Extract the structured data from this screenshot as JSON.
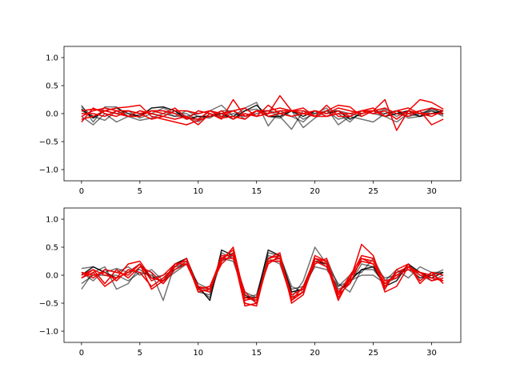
{
  "colors": {
    "dark": "#000000",
    "red": "#ee0000",
    "axis": "#000000",
    "background": "#ffffff"
  },
  "chart_data": [
    {
      "type": "line",
      "xlim": [
        -1.5,
        32.5
      ],
      "ylim": [
        -1.2,
        1.2
      ],
      "xticks": [
        0,
        5,
        10,
        15,
        20,
        25,
        30
      ],
      "yticks": [
        -1.0,
        -0.5,
        0.0,
        0.5,
        1.0
      ],
      "xtick_labels": [
        "0",
        "5",
        "10",
        "15",
        "20",
        "25",
        "30"
      ],
      "ytick_labels": [
        "−1.0",
        "−0.5",
        "0.0",
        "0.5",
        "1.0"
      ],
      "grid": false,
      "x": [
        0,
        1,
        2,
        3,
        4,
        5,
        6,
        7,
        8,
        9,
        10,
        11,
        12,
        13,
        14,
        15,
        16,
        17,
        18,
        19,
        20,
        21,
        22,
        23,
        24,
        25,
        26,
        27,
        28,
        29,
        30,
        31
      ],
      "series": [
        {
          "color": "dark",
          "opacity": 0.55,
          "values": [
            0.15,
            -0.15,
            0.12,
            0.12,
            -0.05,
            0.05,
            0.0,
            -0.05,
            0.05,
            -0.05,
            0.0,
            0.05,
            0.15,
            -0.05,
            0.1,
            0.2,
            -0.22,
            0.05,
            -0.05,
            -0.15,
            0.05,
            -0.05,
            0.0,
            -0.15,
            0.05,
            0.0,
            0.08,
            -0.05,
            0.05,
            0.0,
            0.05,
            -0.02
          ]
        },
        {
          "color": "dark",
          "opacity": 0.55,
          "values": [
            0.05,
            -0.05,
            -0.12,
            0.05,
            -0.05,
            -0.02,
            0.05,
            0.05,
            -0.05,
            0.05,
            -0.05,
            -0.08,
            0.05,
            0.05,
            -0.1,
            0.05,
            0.05,
            -0.05,
            -0.28,
            0.05,
            0.0,
            0.1,
            -0.2,
            -0.05,
            0.05,
            0.0,
            -0.05,
            -0.15,
            0.0,
            -0.05,
            0.05,
            -0.05
          ]
        },
        {
          "color": "dark",
          "opacity": 0.55,
          "values": [
            -0.05,
            -0.2,
            0.0,
            -0.15,
            -0.05,
            -0.12,
            -0.08,
            0.0,
            -0.05,
            -0.05,
            -0.15,
            0.0,
            -0.05,
            -0.05,
            0.05,
            0.08,
            -0.05,
            -0.08,
            0.05,
            -0.25,
            -0.08,
            0.05,
            -0.1,
            -0.05,
            -0.1,
            -0.15,
            0.0,
            0.05,
            -0.08,
            -0.05,
            0.1,
            0.0
          ]
        },
        {
          "color": "dark",
          "opacity": 0.9,
          "values": [
            0.08,
            -0.08,
            0.05,
            0.1,
            0.0,
            -0.05,
            0.1,
            0.12,
            0.05,
            -0.1,
            -0.05,
            -0.05,
            0.0,
            -0.1,
            0.05,
            0.15,
            -0.05,
            -0.05,
            0.05,
            -0.05,
            0.05,
            0.0,
            0.05,
            -0.1,
            0.0,
            0.05,
            -0.05,
            0.0,
            0.05,
            -0.05,
            0.0,
            0.05
          ]
        },
        {
          "color": "dark",
          "opacity": 0.55,
          "values": [
            0.12,
            -0.05,
            0.05,
            0.0,
            0.05,
            -0.08,
            0.0,
            0.1,
            0.0,
            0.0,
            -0.12,
            0.05,
            -0.05,
            0.0,
            -0.05,
            0.0,
            0.05,
            0.0,
            0.05,
            -0.1,
            0.0,
            0.05,
            0.05,
            0.0,
            -0.05,
            0.05,
            0.0,
            0.05,
            -0.05,
            0.0,
            0.08,
            0.0
          ]
        },
        {
          "color": "red",
          "opacity": 1.0,
          "values": [
            -0.15,
            0.1,
            0.0,
            -0.05,
            0.05,
            0.0,
            0.05,
            0.05,
            0.0,
            -0.1,
            0.05,
            0.0,
            -0.1,
            0.25,
            -0.05,
            0.05,
            0.0,
            0.32,
            0.05,
            0.05,
            -0.05,
            0.15,
            -0.05,
            -0.05,
            0.05,
            0.0,
            0.05,
            -0.1,
            0.05,
            0.0,
            -0.05,
            0.05
          ]
        },
        {
          "color": "red",
          "opacity": 1.0,
          "values": [
            -0.1,
            -0.05,
            0.05,
            0.1,
            0.12,
            0.15,
            -0.05,
            -0.1,
            -0.15,
            -0.2,
            -0.12,
            -0.05,
            0.05,
            -0.1,
            0.0,
            -0.05,
            0.0,
            0.05,
            0.05,
            0.1,
            -0.05,
            0.05,
            0.15,
            0.12,
            -0.05,
            0.05,
            0.25,
            -0.3,
            0.05,
            0.25,
            0.2,
            0.08
          ]
        },
        {
          "color": "red",
          "opacity": 1.0,
          "values": [
            0.05,
            0.08,
            0.05,
            0.0,
            -0.05,
            -0.05,
            0.05,
            0.0,
            0.1,
            -0.08,
            -0.1,
            0.05,
            -0.05,
            0.05,
            0.1,
            -0.05,
            0.15,
            0.0,
            -0.05,
            0.0,
            0.05,
            -0.05,
            0.0,
            0.0,
            0.05,
            0.1,
            -0.05,
            0.05,
            0.0,
            0.05,
            0.1,
            0.05
          ]
        },
        {
          "color": "red",
          "opacity": 1.0,
          "values": [
            -0.05,
            0.05,
            0.1,
            0.05,
            -0.05,
            0.05,
            0.0,
            -0.05,
            -0.1,
            -0.05,
            -0.2,
            0.0,
            -0.08,
            -0.05,
            -0.1,
            0.05,
            -0.05,
            0.0,
            0.05,
            0.0,
            -0.05,
            -0.05,
            0.05,
            -0.05,
            0.05,
            0.05,
            0.1,
            0.0,
            -0.05,
            0.05,
            -0.2,
            -0.1
          ]
        },
        {
          "color": "red",
          "opacity": 1.0,
          "values": [
            0.0,
            0.0,
            -0.05,
            0.05,
            0.05,
            0.0,
            -0.1,
            -0.05,
            0.05,
            0.05,
            0.0,
            0.05,
            0.0,
            0.05,
            -0.05,
            0.05,
            0.05,
            0.1,
            0.05,
            0.0,
            0.05,
            0.0,
            0.1,
            0.05,
            0.0,
            0.05,
            -0.05,
            0.05,
            0.1,
            0.0,
            0.0,
            0.0
          ]
        }
      ]
    },
    {
      "type": "line",
      "xlim": [
        -1.5,
        32.5
      ],
      "ylim": [
        -1.2,
        1.2
      ],
      "xticks": [
        0,
        5,
        10,
        15,
        20,
        25,
        30
      ],
      "yticks": [
        -1.0,
        -0.5,
        0.0,
        0.5,
        1.0
      ],
      "xtick_labels": [
        "0",
        "5",
        "10",
        "15",
        "20",
        "25",
        "30"
      ],
      "ytick_labels": [
        "−1.0",
        "−0.5",
        "0.0",
        "0.5",
        "1.0"
      ],
      "grid": false,
      "x": [
        0,
        1,
        2,
        3,
        4,
        5,
        6,
        7,
        8,
        9,
        10,
        11,
        12,
        13,
        14,
        15,
        16,
        17,
        18,
        19,
        20,
        21,
        22,
        23,
        24,
        25,
        26,
        27,
        28,
        29,
        30,
        31
      ],
      "series": [
        {
          "color": "dark",
          "opacity": 0.55,
          "values": [
            -0.25,
            0.05,
            0.15,
            -0.25,
            -0.15,
            0.15,
            0.05,
            -0.45,
            0.2,
            0.3,
            -0.3,
            -0.35,
            0.4,
            0.3,
            -0.35,
            -0.5,
            0.3,
            0.2,
            -0.4,
            -0.1,
            0.5,
            0.2,
            -0.15,
            -0.3,
            0.1,
            0.1,
            -0.15,
            -0.05,
            0.2,
            0.0,
            -0.1,
            0.0
          ]
        },
        {
          "color": "dark",
          "opacity": 0.55,
          "values": [
            0.12,
            0.15,
            0.05,
            0.12,
            0.05,
            0.1,
            -0.05,
            0.0,
            0.1,
            0.25,
            -0.25,
            -0.4,
            0.3,
            0.4,
            -0.4,
            -0.35,
            0.4,
            0.35,
            -0.2,
            -0.3,
            0.2,
            0.3,
            -0.2,
            0.0,
            0.05,
            0.3,
            -0.1,
            0.1,
            -0.05,
            0.15,
            0.05,
            0.05
          ]
        },
        {
          "color": "dark",
          "opacity": 0.55,
          "values": [
            0.05,
            -0.1,
            0.1,
            0.05,
            0.15,
            0.0,
            0.1,
            -0.1,
            0.05,
            0.2,
            -0.2,
            -0.3,
            0.25,
            0.35,
            -0.3,
            -0.4,
            0.35,
            0.3,
            -0.3,
            -0.25,
            0.3,
            0.15,
            -0.25,
            -0.15,
            0.2,
            0.15,
            -0.05,
            0.0,
            0.15,
            -0.05,
            0.0,
            0.05
          ]
        },
        {
          "color": "dark",
          "opacity": 0.9,
          "values": [
            0.0,
            0.15,
            0.05,
            -0.05,
            0.05,
            0.2,
            -0.05,
            -0.1,
            0.2,
            0.3,
            -0.2,
            -0.45,
            0.45,
            0.35,
            -0.4,
            -0.4,
            0.45,
            0.35,
            -0.3,
            -0.25,
            0.25,
            0.2,
            -0.3,
            -0.1,
            0.1,
            0.15,
            -0.2,
            -0.1,
            0.2,
            0.05,
            -0.05,
            0.05
          ]
        },
        {
          "color": "dark",
          "opacity": 0.55,
          "values": [
            -0.15,
            0.0,
            0.0,
            0.0,
            -0.1,
            0.05,
            0.0,
            -0.15,
            0.15,
            0.2,
            -0.15,
            -0.25,
            0.3,
            0.25,
            -0.35,
            -0.45,
            0.25,
            0.25,
            -0.25,
            -0.2,
            0.15,
            0.1,
            -0.2,
            -0.1,
            0.0,
            0.0,
            -0.15,
            0.05,
            0.1,
            -0.05,
            0.0,
            0.1
          ]
        },
        {
          "color": "red",
          "opacity": 1.0,
          "values": [
            -0.05,
            0.1,
            0.0,
            -0.05,
            0.2,
            0.25,
            -0.05,
            -0.1,
            0.15,
            0.3,
            -0.25,
            -0.3,
            0.3,
            0.45,
            -0.5,
            -0.55,
            0.3,
            0.35,
            -0.45,
            -0.3,
            0.35,
            0.25,
            -0.4,
            -0.1,
            0.55,
            0.35,
            -0.25,
            0.1,
            0.2,
            -0.1,
            0.05,
            -0.15
          ]
        },
        {
          "color": "red",
          "opacity": 1.0,
          "values": [
            0.05,
            -0.05,
            0.1,
            0.05,
            0.0,
            0.2,
            -0.1,
            0.0,
            0.2,
            0.25,
            -0.3,
            -0.25,
            0.25,
            0.5,
            -0.4,
            -0.45,
            0.3,
            0.4,
            -0.5,
            -0.35,
            0.3,
            0.2,
            -0.45,
            -0.05,
            0.35,
            0.3,
            -0.3,
            -0.2,
            0.15,
            0.0,
            -0.05,
            -0.1
          ]
        },
        {
          "color": "red",
          "opacity": 1.0,
          "values": [
            0.0,
            0.1,
            -0.15,
            0.1,
            -0.05,
            0.15,
            0.05,
            -0.15,
            0.1,
            0.2,
            -0.2,
            -0.25,
            0.35,
            0.35,
            -0.55,
            -0.5,
            0.25,
            0.3,
            -0.35,
            -0.25,
            0.2,
            0.3,
            -0.35,
            -0.15,
            0.3,
            0.25,
            -0.1,
            -0.05,
            0.2,
            -0.15,
            0.05,
            0.0
          ]
        },
        {
          "color": "red",
          "opacity": 1.0,
          "values": [
            0.05,
            0.0,
            0.05,
            -0.1,
            0.1,
            0.05,
            -0.2,
            -0.05,
            0.15,
            0.3,
            -0.25,
            -0.2,
            0.2,
            0.4,
            -0.45,
            -0.4,
            0.2,
            0.35,
            -0.4,
            -0.3,
            0.25,
            0.15,
            -0.3,
            -0.05,
            0.25,
            0.2,
            -0.2,
            0.05,
            0.15,
            0.05,
            -0.1,
            -0.05
          ]
        },
        {
          "color": "red",
          "opacity": 1.0,
          "values": [
            -0.05,
            0.05,
            -0.2,
            -0.05,
            0.05,
            0.2,
            -0.25,
            -0.1,
            0.2,
            0.2,
            -0.25,
            -0.2,
            0.3,
            0.3,
            -0.3,
            -0.5,
            0.25,
            0.25,
            -0.45,
            -0.2,
            0.3,
            0.25,
            -0.35,
            0.0,
            0.3,
            0.2,
            -0.15,
            0.0,
            0.1,
            0.05,
            0.0,
            -0.1
          ]
        }
      ]
    }
  ]
}
